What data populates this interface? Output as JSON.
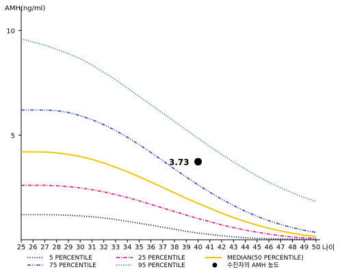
{
  "chart_data": {
    "type": "line",
    "ylabel": "AMH(ng/ml)",
    "xlabel": "나이",
    "x": [
      25,
      26,
      27,
      28,
      29,
      30,
      31,
      32,
      33,
      34,
      35,
      36,
      37,
      38,
      39,
      40,
      41,
      42,
      43,
      44,
      45,
      46,
      47,
      48,
      49,
      50
    ],
    "xlim": [
      25,
      50
    ],
    "ylim": [
      0,
      11
    ],
    "yticks": [
      5,
      10
    ],
    "grid": false,
    "legend_position": "bottom",
    "series": [
      {
        "name": "5 PERCENTILE",
        "color": "#0b0b60",
        "dash": "dotted",
        "values": [
          1.2,
          1.2,
          1.2,
          1.19,
          1.17,
          1.14,
          1.1,
          1.04,
          0.97,
          0.88,
          0.79,
          0.7,
          0.6,
          0.5,
          0.4,
          0.32,
          0.25,
          0.19,
          0.14,
          0.1,
          0.07,
          0.05,
          0.04,
          0.03,
          0.02,
          0.02
        ]
      },
      {
        "name": "25 PERCENTILE",
        "color": "#e0217a",
        "dash": "dashdot",
        "values": [
          2.6,
          2.6,
          2.6,
          2.58,
          2.54,
          2.48,
          2.39,
          2.29,
          2.16,
          2.02,
          1.86,
          1.69,
          1.52,
          1.35,
          1.18,
          1.01,
          0.86,
          0.71,
          0.58,
          0.46,
          0.36,
          0.27,
          0.19,
          0.13,
          0.09,
          0.07
        ]
      },
      {
        "name": "MEDIAN(50 PERCENTILE)",
        "color": "#f2c500",
        "dash": "solid",
        "values": [
          4.2,
          4.2,
          4.19,
          4.15,
          4.08,
          3.98,
          3.84,
          3.67,
          3.47,
          3.25,
          3.01,
          2.76,
          2.5,
          2.24,
          1.98,
          1.74,
          1.5,
          1.27,
          1.06,
          0.87,
          0.7,
          0.55,
          0.42,
          0.31,
          0.22,
          0.16
        ]
      },
      {
        "name": "75 PERCENTILE",
        "color": "#3350c8",
        "dash": "dashdotdot",
        "values": [
          6.2,
          6.2,
          6.2,
          6.17,
          6.08,
          5.93,
          5.74,
          5.5,
          5.22,
          4.9,
          4.55,
          4.17,
          3.78,
          3.38,
          3.0,
          2.62,
          2.27,
          1.94,
          1.64,
          1.36,
          1.12,
          0.91,
          0.73,
          0.58,
          0.45,
          0.35
        ]
      },
      {
        "name": "95 PERCENTILE",
        "color": "#2e8b57",
        "dash": "dotted",
        "values": [
          9.6,
          9.45,
          9.3,
          9.1,
          8.9,
          8.65,
          8.35,
          8.0,
          7.65,
          7.25,
          6.85,
          6.45,
          6.05,
          5.65,
          5.25,
          4.85,
          4.45,
          4.08,
          3.72,
          3.38,
          3.05,
          2.75,
          2.48,
          2.24,
          2.02,
          1.83
        ]
      }
    ],
    "annotation": {
      "name": "수진자의 AMH 농도",
      "x": 40,
      "y": 3.73,
      "label": "3.73",
      "color": "#000000"
    }
  }
}
